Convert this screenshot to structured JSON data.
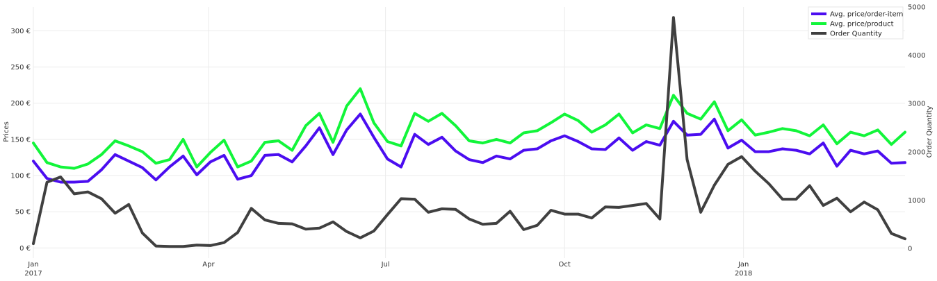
{
  "chart_data": {
    "type": "line",
    "title": "",
    "ylabel": "Prices",
    "y2label": "Order Quantity",
    "ylim": [
      -14,
      333
    ],
    "y2lim": [
      -200,
      5000
    ],
    "y_ticks": [
      {
        "value": 0,
        "label": "0 €"
      },
      {
        "value": 50,
        "label": "50 €"
      },
      {
        "value": 100,
        "label": "100 €"
      },
      {
        "value": 150,
        "label": "150 €"
      },
      {
        "value": 200,
        "label": "200 €"
      },
      {
        "value": 250,
        "label": "250 €"
      },
      {
        "value": 300,
        "label": "300 €"
      }
    ],
    "y2_ticks": [
      {
        "value": 0,
        "label": "0"
      },
      {
        "value": 1000,
        "label": "1000"
      },
      {
        "value": 2000,
        "label": "2000"
      },
      {
        "value": 3000,
        "label": "3000"
      },
      {
        "value": 4000,
        "label": "4000"
      },
      {
        "value": 5000,
        "label": "5000"
      }
    ],
    "x_ticks": [
      {
        "value": "2017-01-01",
        "label": "Jan",
        "sublabel": "2017"
      },
      {
        "value": "2017-04-01",
        "label": "Apr",
        "sublabel": ""
      },
      {
        "value": "2017-07-01",
        "label": "Jul",
        "sublabel": ""
      },
      {
        "value": "2017-10-01",
        "label": "Oct",
        "sublabel": ""
      },
      {
        "value": "2018-01-01",
        "label": "Jan",
        "sublabel": "2018"
      }
    ],
    "xlim": [
      "2017-01-01",
      "2018-03-25"
    ],
    "grid": true,
    "legend": "top-right",
    "x": [
      "2017-01-01",
      "2017-01-08",
      "2017-01-15",
      "2017-01-22",
      "2017-01-29",
      "2017-02-05",
      "2017-02-12",
      "2017-02-19",
      "2017-02-26",
      "2017-03-05",
      "2017-03-12",
      "2017-03-19",
      "2017-03-26",
      "2017-04-02",
      "2017-04-09",
      "2017-04-16",
      "2017-04-23",
      "2017-04-30",
      "2017-05-07",
      "2017-05-14",
      "2017-05-21",
      "2017-05-28",
      "2017-06-04",
      "2017-06-11",
      "2017-06-18",
      "2017-06-25",
      "2017-07-02",
      "2017-07-09",
      "2017-07-16",
      "2017-07-23",
      "2017-07-30",
      "2017-08-06",
      "2017-08-13",
      "2017-08-20",
      "2017-08-27",
      "2017-09-03",
      "2017-09-10",
      "2017-09-17",
      "2017-09-24",
      "2017-10-01",
      "2017-10-08",
      "2017-10-15",
      "2017-10-22",
      "2017-10-29",
      "2017-11-05",
      "2017-11-12",
      "2017-11-19",
      "2017-11-26",
      "2017-12-03",
      "2017-12-10",
      "2017-12-17",
      "2017-12-24",
      "2017-12-31",
      "2018-01-07",
      "2018-01-14",
      "2018-01-21",
      "2018-01-28",
      "2018-02-04",
      "2018-02-11",
      "2018-02-18",
      "2018-02-25",
      "2018-03-04",
      "2018-03-11",
      "2018-03-18",
      "2018-03-25"
    ],
    "series": [
      {
        "name": "Avg. price/order-item",
        "color": "#4b0df0",
        "axis": "y",
        "values": [
          120,
          96,
          91,
          91,
          92,
          108,
          129,
          120,
          111,
          94,
          112,
          127,
          101,
          119,
          128,
          95,
          100,
          128,
          129,
          119,
          141,
          166,
          129,
          163,
          185,
          153,
          123,
          112,
          157,
          143,
          153,
          134,
          122,
          118,
          127,
          123,
          135,
          137,
          148,
          155,
          147,
          137,
          136,
          152,
          135,
          147,
          142,
          175,
          156,
          157,
          178,
          138,
          149,
          133,
          133,
          137,
          135,
          130,
          145,
          113,
          135,
          130,
          134,
          117,
          118
        ]
      },
      {
        "name": "Avg. price/product",
        "color": "#12f53a",
        "axis": "y",
        "values": [
          145,
          118,
          112,
          110,
          116,
          129,
          148,
          141,
          133,
          117,
          122,
          150,
          112,
          132,
          149,
          112,
          120,
          146,
          148,
          135,
          169,
          186,
          146,
          196,
          220,
          173,
          147,
          141,
          186,
          175,
          186,
          169,
          148,
          145,
          150,
          145,
          159,
          162,
          173,
          185,
          176,
          160,
          170,
          185,
          159,
          170,
          165,
          211,
          186,
          178,
          202,
          162,
          177,
          156,
          160,
          165,
          162,
          155,
          170,
          144,
          160,
          155,
          163,
          143,
          160
        ]
      },
      {
        "name": "Order Quantity",
        "color": "#404040",
        "axis": "y2",
        "values": [
          100,
          1370,
          1480,
          1130,
          1170,
          1030,
          730,
          910,
          320,
          50,
          40,
          40,
          70,
          60,
          120,
          330,
          830,
          590,
          520,
          510,
          400,
          420,
          550,
          350,
          220,
          360,
          700,
          1030,
          1020,
          750,
          820,
          810,
          610,
          500,
          520,
          770,
          390,
          480,
          790,
          710,
          710,
          630,
          860,
          850,
          890,
          930,
          610,
          4780,
          1840,
          750,
          1310,
          1740,
          1900,
          1600,
          1340,
          1020,
          1020,
          1300,
          890,
          1040,
          760,
          960,
          800,
          310,
          200
        ]
      }
    ]
  }
}
